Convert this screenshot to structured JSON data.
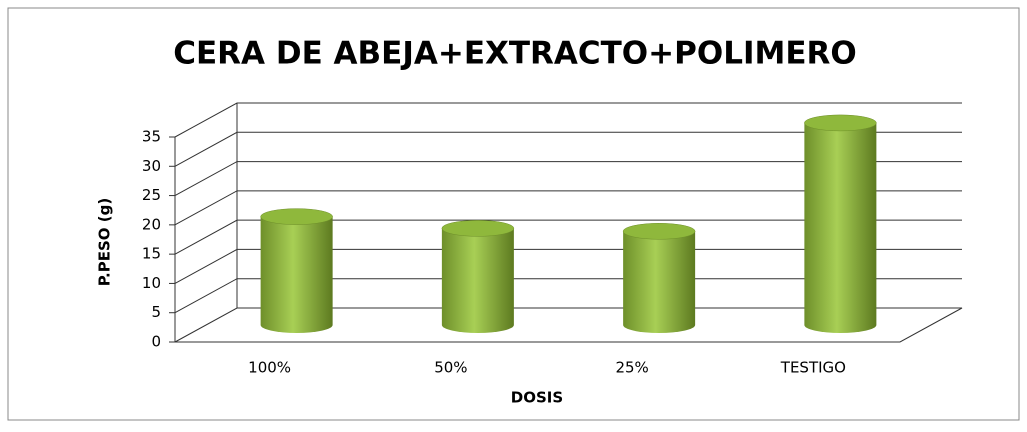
{
  "chart_data": {
    "type": "bar3d",
    "title": "CERA DE ABEJA+EXTRACTO+POLIMERO",
    "x_label": "DOSIS",
    "y_label": "P.PESO (g)",
    "categories": [
      "100%",
      "50%",
      "25%",
      "TESTIGO"
    ],
    "values": [
      18.5,
      16.5,
      16,
      34.5
    ],
    "color": "#8db33a",
    "ylim": [
      0,
      35
    ],
    "yticks": [
      0,
      5,
      10,
      15,
      20,
      25,
      30,
      35
    ],
    "grid": true
  }
}
